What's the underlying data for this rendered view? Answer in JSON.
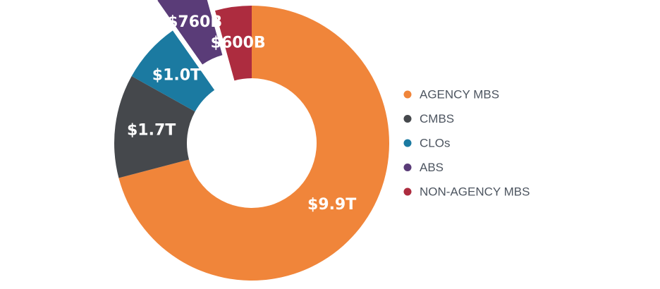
{
  "chart_data": {
    "type": "pie",
    "variant": "donut",
    "exploded_slice": "ABS",
    "legend_position": "right",
    "slices": [
      {
        "name": "AGENCY MBS",
        "label": "$9.9T",
        "value": 9.9,
        "color": "#f0853a"
      },
      {
        "name": "CMBS",
        "label": "$1.7T",
        "value": 1.7,
        "color": "#45484c"
      },
      {
        "name": "CLOs",
        "label": "$1.0T",
        "value": 1.0,
        "color": "#1b7aa1"
      },
      {
        "name": "ABS",
        "label": "$760B",
        "value": 0.76,
        "color": "#5a3c78"
      },
      {
        "name": "NON-AGENCY MBS",
        "label": "$600B",
        "value": 0.6,
        "color": "#ad2c3f"
      }
    ]
  }
}
